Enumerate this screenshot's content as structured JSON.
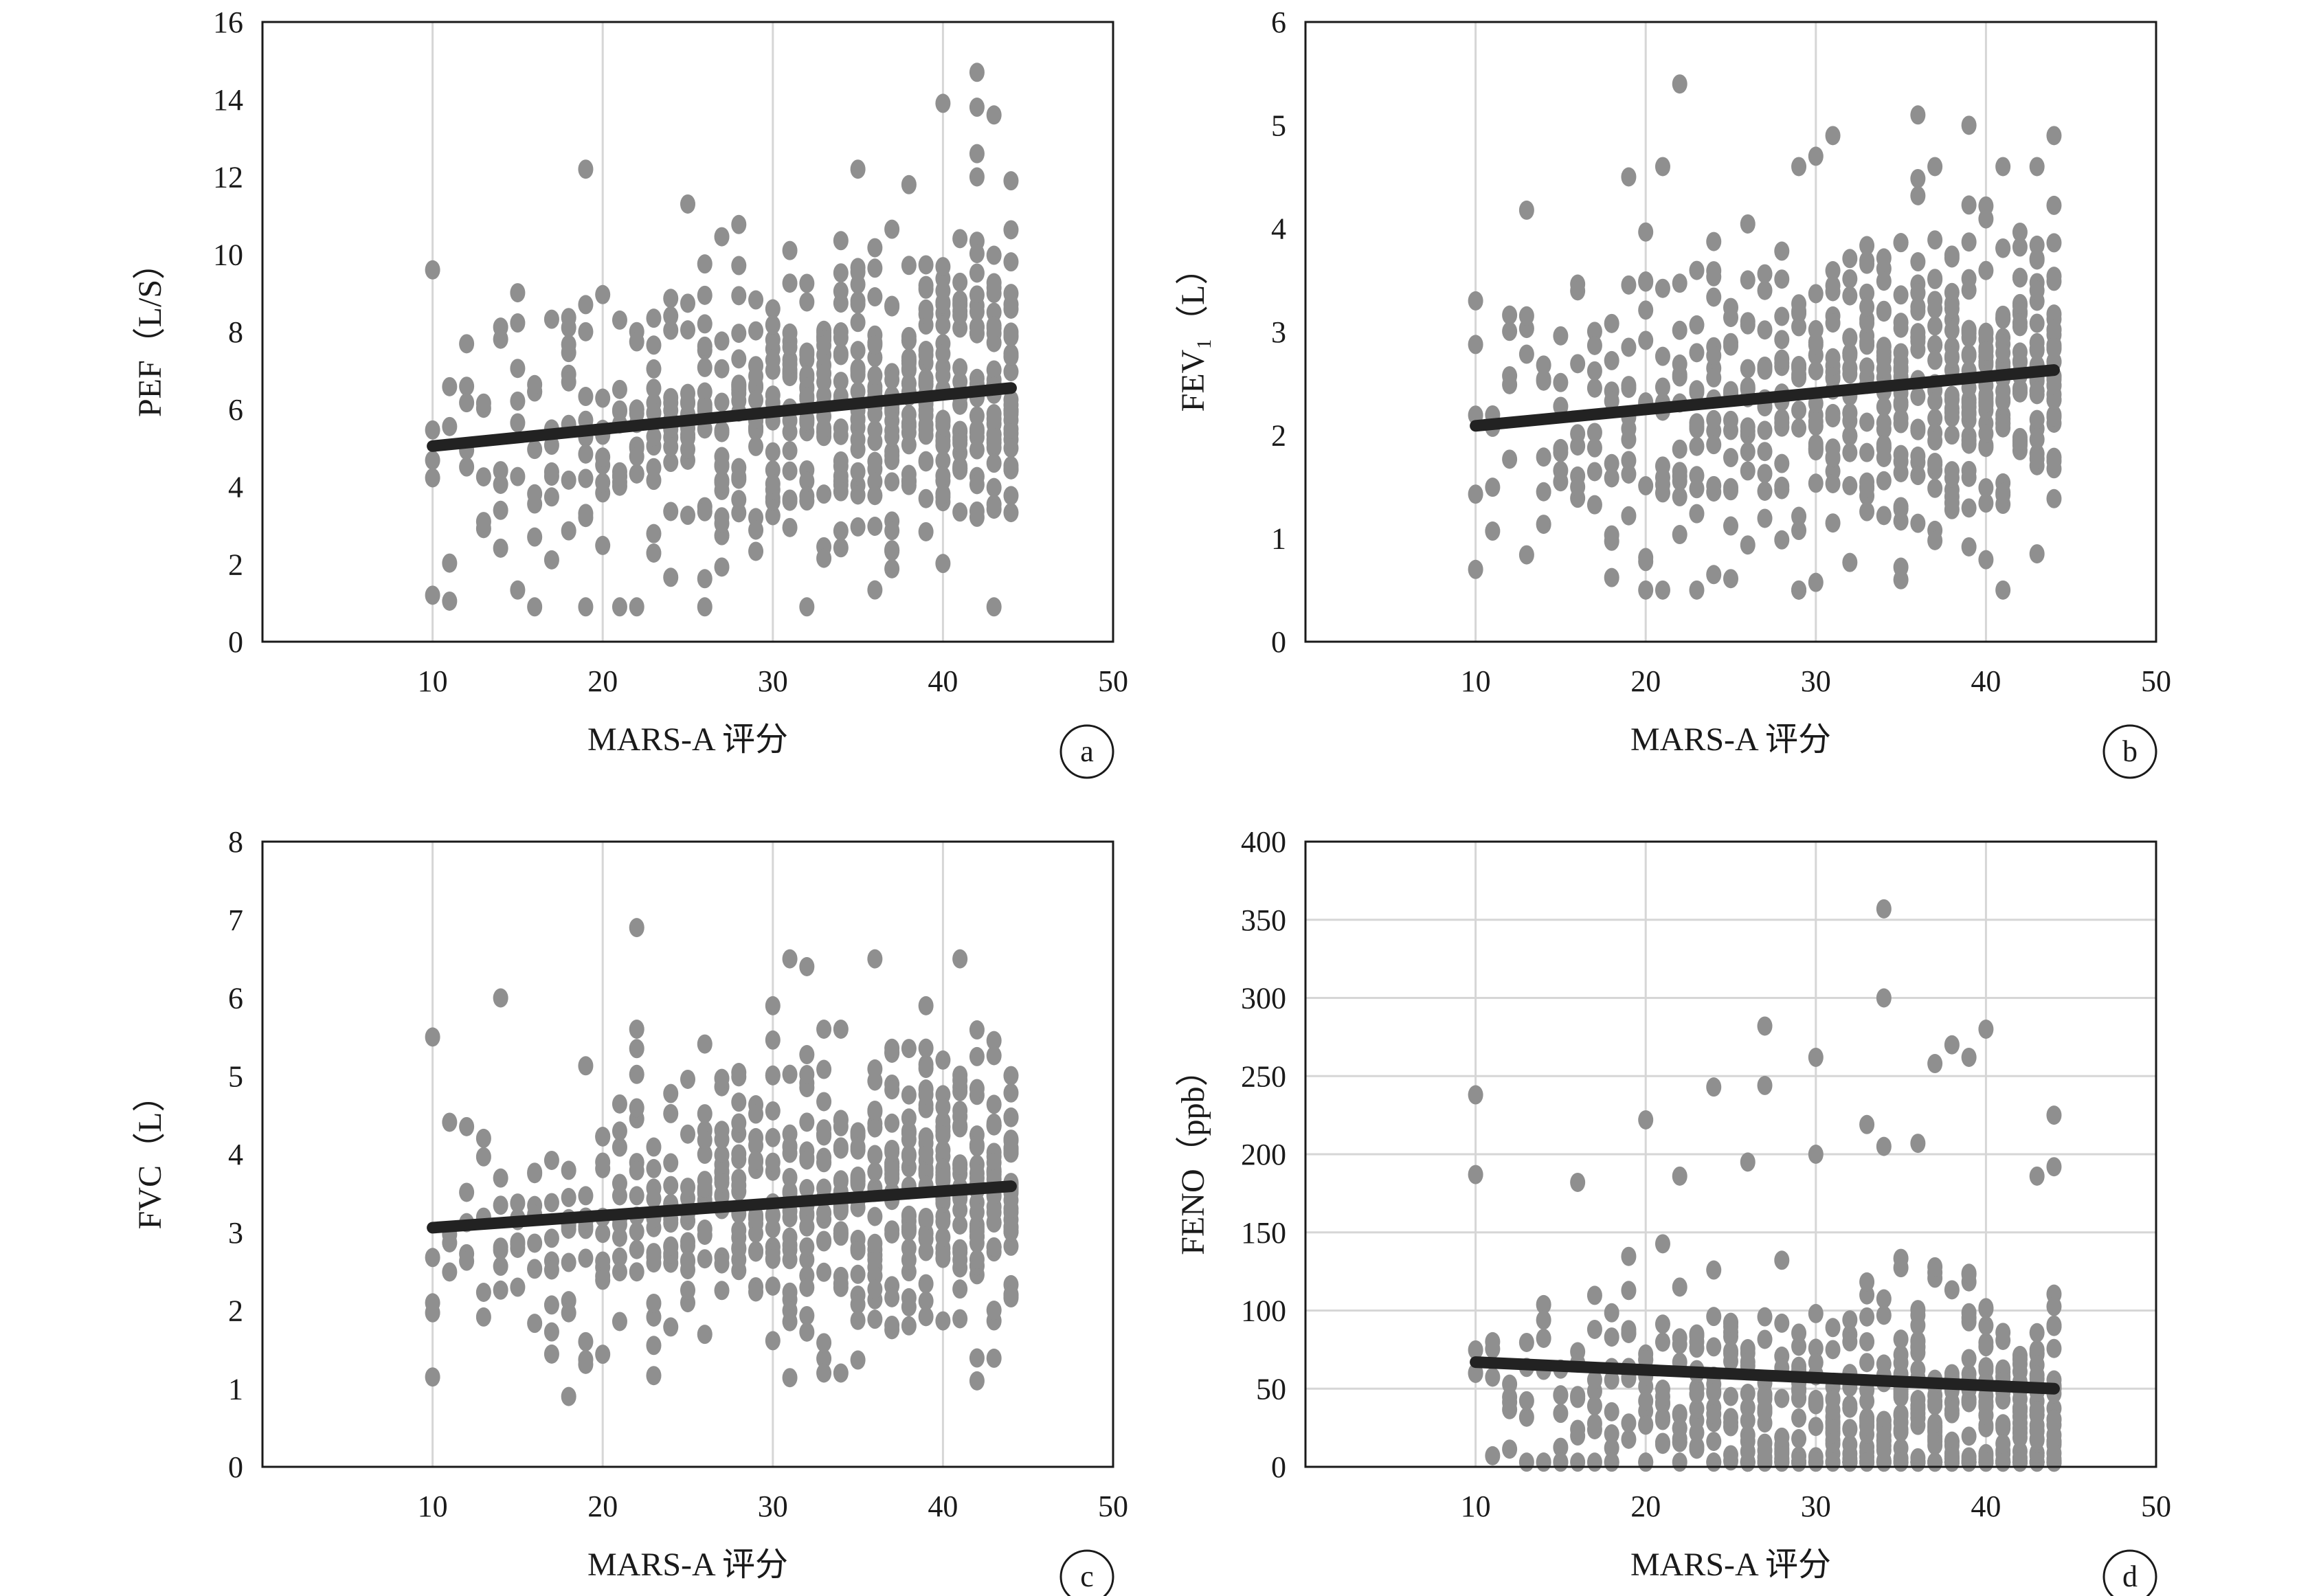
{
  "chart_data": [
    {
      "type": "scatter",
      "panel_label": "a",
      "xlabel": "MARS-A 评分",
      "ylabel": "PEF（L/S）",
      "xlim": [
        0,
        50
      ],
      "ylim": [
        0,
        16
      ],
      "xticks": [
        10,
        20,
        30,
        40,
        50
      ],
      "yticks": [
        0,
        2,
        4,
        6,
        8,
        10,
        12,
        14,
        16
      ],
      "grid": "vertical",
      "fit_line": {
        "x": [
          10,
          44
        ],
        "y": [
          5.05,
          6.55
        ]
      },
      "point_spread": {
        "center": 5.05,
        "slope": 0.044,
        "sd": 1.9,
        "min": 0.9,
        "max": 12
      },
      "outliers": [
        [
          42,
          14.7
        ],
        [
          40,
          13.9
        ],
        [
          42,
          13.8
        ],
        [
          43,
          13.6
        ],
        [
          42,
          12.6
        ],
        [
          19,
          12.2
        ],
        [
          35,
          12.2
        ],
        [
          38,
          11.8
        ],
        [
          25,
          11.3
        ],
        [
          44,
          11.9
        ],
        [
          10,
          9.6
        ],
        [
          10,
          1.2
        ],
        [
          19,
          0.9
        ],
        [
          43,
          0.9
        ]
      ],
      "marker_color": "#8f8f8f",
      "line_color": "#222222"
    },
    {
      "type": "scatter",
      "panel_label": "b",
      "xlabel": "MARS-A 评分",
      "ylabel": "FEV₁（L）",
      "xlim": [
        0,
        50
      ],
      "ylim": [
        0,
        6
      ],
      "xticks": [
        10,
        20,
        30,
        40,
        50
      ],
      "yticks": [
        0,
        1,
        2,
        3,
        4,
        5,
        6
      ],
      "grid": "vertical",
      "fit_line": {
        "x": [
          10,
          44
        ],
        "y": [
          2.09,
          2.63
        ]
      },
      "point_spread": {
        "center": 2.09,
        "slope": 0.016,
        "sd": 0.8,
        "min": 0.5,
        "max": 4.6
      },
      "outliers": [
        [
          22,
          5.4
        ],
        [
          36,
          5.1
        ],
        [
          39,
          5.0
        ],
        [
          44,
          4.9
        ],
        [
          31,
          4.9
        ],
        [
          30,
          4.7
        ],
        [
          21,
          4.6
        ],
        [
          19,
          4.5
        ],
        [
          41,
          4.6
        ],
        [
          10,
          3.3
        ],
        [
          10,
          0.7
        ],
        [
          24,
          0.65
        ],
        [
          35,
          0.6
        ],
        [
          41,
          0.5
        ]
      ],
      "marker_color": "#8f8f8f",
      "line_color": "#222222"
    },
    {
      "type": "scatter",
      "panel_label": "c",
      "xlabel": "MARS-A 评分",
      "ylabel": "FVC（L）",
      "xlim": [
        0,
        50
      ],
      "ylim": [
        0,
        8
      ],
      "xticks": [
        10,
        20,
        30,
        40,
        50
      ],
      "yticks": [
        0,
        1,
        2,
        3,
        4,
        5,
        6,
        7,
        8
      ],
      "grid": "vertical",
      "fit_line": {
        "x": [
          10,
          44
        ],
        "y": [
          3.06,
          3.59
        ]
      },
      "point_spread": {
        "center": 3.06,
        "slope": 0.0156,
        "sd": 0.95,
        "min": 1.1,
        "max": 5.6
      },
      "outliers": [
        [
          22,
          6.9
        ],
        [
          31,
          6.5
        ],
        [
          32,
          6.4
        ],
        [
          36,
          6.5
        ],
        [
          41,
          6.5
        ],
        [
          14,
          6.0
        ],
        [
          30,
          5.9
        ],
        [
          39,
          5.9
        ],
        [
          10,
          5.5
        ],
        [
          18,
          0.9
        ],
        [
          10,
          1.15
        ],
        [
          33,
          1.2
        ],
        [
          34,
          1.2
        ]
      ],
      "marker_color": "#8f8f8f",
      "line_color": "#222222"
    },
    {
      "type": "scatter",
      "panel_label": "d",
      "xlabel": "MARS-A 评分",
      "ylabel": "FENO（ppb）",
      "xlim": [
        0,
        50
      ],
      "ylim": [
        0,
        400
      ],
      "xticks": [
        10,
        20,
        30,
        40,
        50
      ],
      "yticks": [
        0,
        50,
        100,
        150,
        200,
        250,
        300,
        350,
        400
      ],
      "grid": "both",
      "fit_line": {
        "x": [
          10,
          44
        ],
        "y": [
          67,
          50
        ]
      },
      "point_spread": {
        "center": 40,
        "slope": -0.3,
        "sd": 38,
        "min": 3,
        "max": 160
      },
      "outliers": [
        [
          34,
          357
        ],
        [
          34,
          300
        ],
        [
          27,
          282
        ],
        [
          40,
          280
        ],
        [
          38,
          270
        ],
        [
          39,
          262
        ],
        [
          30,
          262
        ],
        [
          37,
          258
        ],
        [
          27,
          244
        ],
        [
          24,
          243
        ],
        [
          10,
          238
        ],
        [
          44,
          225
        ],
        [
          20,
          222
        ],
        [
          33,
          219
        ],
        [
          36,
          207
        ],
        [
          34,
          205
        ],
        [
          30,
          200
        ],
        [
          44,
          192
        ],
        [
          26,
          195
        ],
        [
          10,
          187
        ],
        [
          22,
          186
        ],
        [
          43,
          186
        ],
        [
          16,
          182
        ]
      ],
      "marker_color": "#8f8f8f",
      "line_color": "#222222"
    }
  ]
}
